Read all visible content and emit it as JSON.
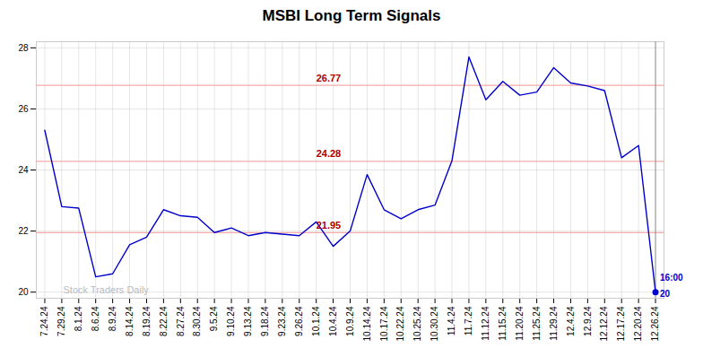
{
  "chart_data": {
    "type": "line",
    "title": "MSBI Long Term Signals",
    "categories": [
      "7.24.24",
      "7.29.24",
      "8.1.24",
      "8.6.24",
      "8.9.24",
      "8.14.24",
      "8.19.24",
      "8.22.24",
      "8.27.24",
      "8.30.24",
      "9.5.24",
      "9.10.24",
      "9.13.24",
      "9.18.24",
      "9.23.24",
      "9.26.24",
      "10.1.24",
      "10.4.24",
      "10.9.24",
      "10.14.24",
      "10.17.24",
      "10.22.24",
      "10.25.24",
      "10.30.24",
      "11.4.24",
      "11.7.24",
      "11.12.24",
      "11.15.24",
      "11.20.24",
      "11.25.24",
      "11.29.24",
      "12.4.24",
      "12.9.24",
      "12.12.24",
      "12.17.24",
      "12.20.24",
      "12.26.24"
    ],
    "values": [
      25.3,
      22.8,
      22.75,
      20.5,
      20.6,
      21.55,
      21.8,
      22.7,
      22.5,
      22.45,
      21.95,
      22.1,
      21.85,
      21.95,
      21.9,
      21.85,
      22.3,
      21.5,
      22.0,
      23.85,
      22.7,
      22.4,
      22.7,
      22.85,
      24.3,
      27.7,
      26.3,
      26.9,
      26.45,
      26.55,
      27.35,
      26.85,
      26.75,
      26.6,
      24.4,
      24.8,
      20.0
    ],
    "color": "#0000cc",
    "ylim": [
      19.8,
      28.2
    ],
    "yticks": [
      20,
      22,
      24,
      26,
      28
    ],
    "grid": true,
    "reference_lines": {
      "values": [
        26.77,
        24.28,
        21.95
      ],
      "color": "#f5a0a0",
      "label_color": "#aa0000"
    },
    "end_annotations": [
      "16:00",
      "20"
    ],
    "watermark": "Stock Traders Daily",
    "watermark_color": "#bbbbbb"
  }
}
